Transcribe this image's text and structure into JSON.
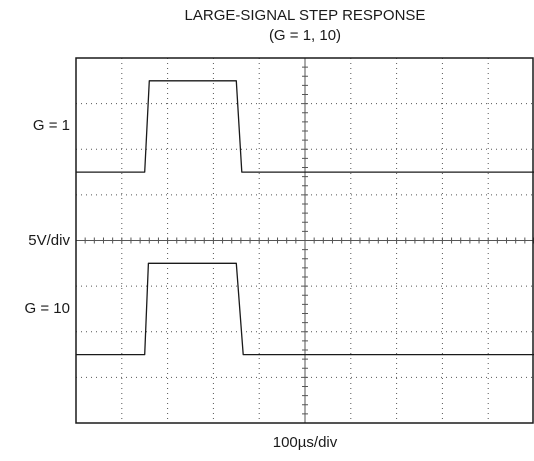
{
  "chart_data": {
    "type": "line",
    "title": [
      "LARGE-SIGNAL STEP RESPONSE",
      "(G = 1, 10)"
    ],
    "xlabel": "100µs/div",
    "ylabel": "5V/div",
    "x_divisions": 10,
    "y_divisions": 8,
    "grid": true,
    "series": [
      {
        "name": "G = 1",
        "label_at_div": 6.5,
        "color": "#1a1a1a",
        "points": [
          [
            0,
            5.5
          ],
          [
            1.5,
            5.5
          ],
          [
            1.6,
            7.5
          ],
          [
            3.5,
            7.5
          ],
          [
            3.62,
            5.5
          ],
          [
            10,
            5.5
          ]
        ]
      },
      {
        "name": "G = 10",
        "label_at_div": 2.5,
        "color": "#1a1a1a",
        "points": [
          [
            0,
            1.5
          ],
          [
            1.5,
            1.5
          ],
          [
            1.58,
            3.5
          ],
          [
            3.5,
            3.5
          ],
          [
            3.65,
            1.5
          ],
          [
            10,
            1.5
          ]
        ]
      }
    ]
  }
}
